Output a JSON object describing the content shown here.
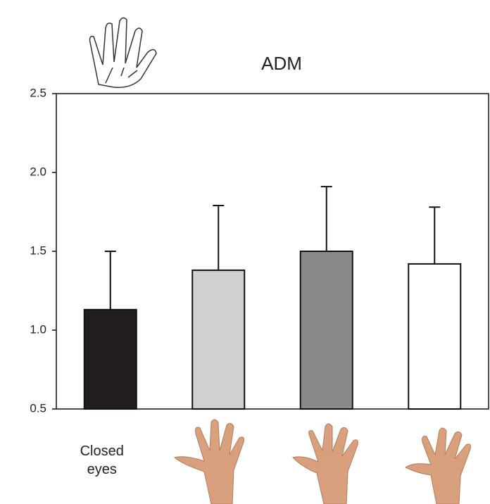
{
  "chart_data": {
    "type": "bar",
    "title": "ADM",
    "categories": [
      "Closed eyes",
      null,
      null,
      null
    ],
    "values": [
      1.13,
      1.38,
      1.5,
      1.42
    ],
    "errors": [
      0.37,
      0.41,
      0.41,
      0.36
    ],
    "colors": [
      "#231f20",
      "#d0d0d0",
      "#8a8a8a",
      "#ffffff"
    ],
    "ylim": [
      0.5,
      2.5
    ],
    "yticks": [
      0.5,
      {
        "value": 1,
        "label": "1.0"
      },
      1.5,
      {
        "value": 2,
        "label": "2.0"
      },
      2.5
    ],
    "grid": false
  }
}
